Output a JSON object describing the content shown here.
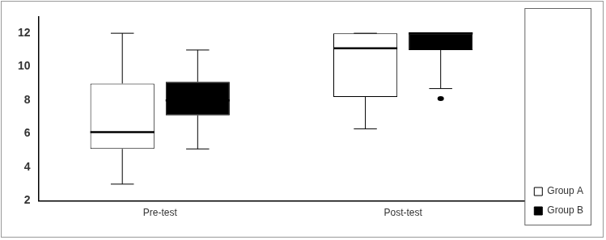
{
  "chart_data": {
    "type": "boxplot",
    "categories": [
      "Pre-test",
      "Post-test"
    ],
    "series": [
      {
        "name": "Group A",
        "color": "#ffffff",
        "min": [
          3,
          6.3
        ],
        "q1": [
          5.1,
          8.2
        ],
        "median": [
          6.1,
          11.1
        ],
        "q3": [
          9,
          12
        ],
        "max": [
          12,
          12
        ],
        "outliers": [
          [],
          []
        ]
      },
      {
        "name": "Group B",
        "color": "#000000",
        "min": [
          5.1,
          8.7
        ],
        "q1": [
          7.1,
          11
        ],
        "median": [
          8,
          12
        ],
        "q3": [
          9.1,
          12
        ],
        "max": [
          11,
          12
        ],
        "outliers": [
          [],
          [
            8.1
          ]
        ]
      }
    ],
    "ylim": [
      2,
      13
    ],
    "yticks": [
      2,
      4,
      6,
      8,
      10,
      12
    ],
    "grid": false,
    "legend": "lower right"
  }
}
